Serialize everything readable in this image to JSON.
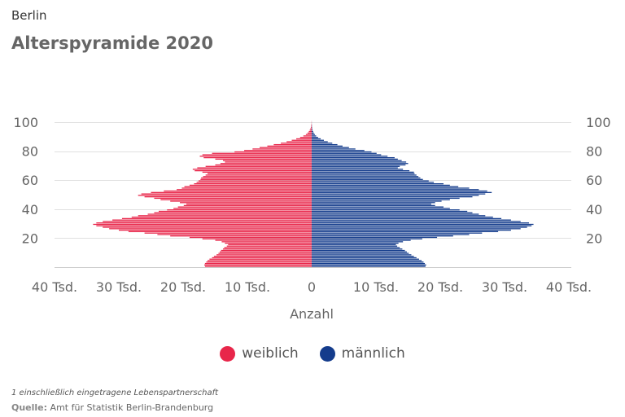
{
  "header": {
    "subtitle": "Berlin",
    "title": "Alterspyramide 2020"
  },
  "chart_data": {
    "type": "bar",
    "orientation": "horizontal-butterfly",
    "title": "Alterspyramide 2020",
    "xlabel": "Anzahl",
    "ylabel": "",
    "xlim": [
      -40000,
      40000
    ],
    "ylim": [
      0,
      100
    ],
    "x_tick_labels": [
      "40 Tsd.",
      "30 Tsd.",
      "20 Tsd.",
      "10 Tsd.",
      "0",
      "10 Tsd.",
      "20 Tsd.",
      "30 Tsd.",
      "40 Tsd."
    ],
    "y_tick_labels": [
      "20",
      "40",
      "60",
      "80",
      "100"
    ],
    "y_tick_values": [
      20,
      40,
      60,
      80,
      100
    ],
    "grid": true,
    "legend_placement": "bottom-center",
    "age_categories": [
      0,
      1,
      2,
      3,
      4,
      5,
      6,
      7,
      8,
      9,
      10,
      11,
      12,
      13,
      14,
      15,
      16,
      17,
      18,
      19,
      20,
      21,
      22,
      23,
      24,
      25,
      26,
      27,
      28,
      29,
      30,
      31,
      32,
      33,
      34,
      35,
      36,
      37,
      38,
      39,
      40,
      41,
      42,
      43,
      44,
      45,
      46,
      47,
      48,
      49,
      50,
      51,
      52,
      53,
      54,
      55,
      56,
      57,
      58,
      59,
      60,
      61,
      62,
      63,
      64,
      65,
      66,
      67,
      68,
      69,
      70,
      71,
      72,
      73,
      74,
      75,
      76,
      77,
      78,
      79,
      80,
      81,
      82,
      83,
      84,
      85,
      86,
      87,
      88,
      89,
      90,
      91,
      92,
      93,
      94,
      95,
      96,
      97,
      98,
      99,
      100
    ],
    "series": [
      {
        "name": "weiblich",
        "color": "#e8264a",
        "values": [
          16600,
          16700,
          16600,
          16400,
          16200,
          15900,
          15500,
          15200,
          14800,
          14500,
          14300,
          14100,
          13800,
          13600,
          13200,
          13000,
          13500,
          14000,
          15000,
          17000,
          19000,
          22000,
          24000,
          26000,
          28500,
          30000,
          31500,
          32500,
          33500,
          34000,
          33500,
          32500,
          31000,
          29500,
          28000,
          27000,
          25500,
          24500,
          23800,
          22500,
          21500,
          20800,
          19900,
          19500,
          20500,
          22000,
          23500,
          24500,
          26000,
          27000,
          26500,
          25000,
          23000,
          21000,
          20200,
          19800,
          19000,
          18300,
          17900,
          17600,
          17300,
          17200,
          16900,
          16500,
          16200,
          17000,
          18200,
          18500,
          17800,
          16500,
          15000,
          14200,
          13500,
          13800,
          15000,
          16800,
          17400,
          17000,
          15500,
          12000,
          10500,
          9200,
          8100,
          6900,
          5900,
          4800,
          3900,
          3100,
          2400,
          1800,
          1300,
          900,
          650,
          450,
          300,
          200,
          130,
          80,
          50,
          30,
          20
        ]
      },
      {
        "name": "männlich",
        "color": "#143c8c",
        "values": [
          17700,
          17800,
          17600,
          17400,
          17100,
          16700,
          16300,
          15900,
          15500,
          15100,
          14800,
          14500,
          14100,
          13700,
          13300,
          13100,
          13500,
          14200,
          15400,
          17200,
          19500,
          22000,
          24500,
          26500,
          29000,
          31000,
          32500,
          33500,
          34200,
          34500,
          33800,
          32500,
          31000,
          29500,
          28200,
          27000,
          26000,
          25000,
          24200,
          23000,
          21500,
          20500,
          19200,
          18600,
          19200,
          20200,
          21500,
          23000,
          25000,
          26000,
          27000,
          28000,
          27300,
          26000,
          24500,
          22800,
          21500,
          20500,
          19000,
          18200,
          17300,
          16900,
          16600,
          16300,
          16000,
          15900,
          15200,
          14200,
          13400,
          13700,
          14600,
          15000,
          14700,
          14000,
          13400,
          12900,
          11800,
          10800,
          10100,
          9300,
          8200,
          6800,
          5800,
          4800,
          4000,
          3200,
          2500,
          1900,
          1400,
          1000,
          700,
          500,
          330,
          220,
          140,
          90,
          60,
          40,
          25,
          15,
          10
        ]
      }
    ]
  },
  "legend": {
    "female_label": "weiblich",
    "male_label": "männlich",
    "female_color": "#e8264a",
    "male_color": "#143c8c"
  },
  "footer": {
    "footnote": "1 einschließlich eingetragene Lebenspartnerschaft",
    "source_label": "Quelle:",
    "source_text": "Amt für Statistik Berlin-Brandenburg"
  }
}
